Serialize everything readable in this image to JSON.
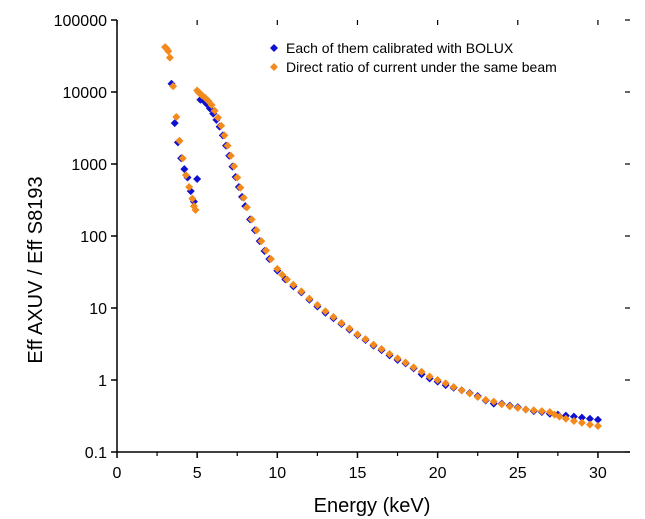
{
  "chart_data": {
    "type": "scatter",
    "title": "",
    "xlabel": "Energy (keV)",
    "ylabel": "Eff AXUV / Eff S8193",
    "xlim": [
      0,
      32
    ],
    "ylim": [
      0.1,
      100000
    ],
    "yscale": "log",
    "grid": false,
    "legend_position": "top-right",
    "x_ticks": [
      0,
      5,
      10,
      15,
      20,
      25,
      30
    ],
    "x_tick_labels": [
      "0",
      "5",
      "10",
      "15",
      "20",
      "25",
      "30"
    ],
    "y_ticks": [
      0.1,
      1,
      10,
      100,
      1000,
      10000,
      100000
    ],
    "y_tick_labels": [
      "0.1",
      "1",
      "10",
      "100",
      "1000",
      "10000",
      "100000"
    ],
    "series": [
      {
        "name": "Each of them calibrated with BOLUX",
        "color": "#1010d0",
        "marker": "diamond",
        "points": [
          [
            3.4,
            13000
          ],
          [
            3.6,
            3700
          ],
          [
            3.8,
            2000
          ],
          [
            4.0,
            1200
          ],
          [
            4.2,
            850
          ],
          [
            4.4,
            650
          ],
          [
            4.6,
            420
          ],
          [
            4.8,
            300
          ],
          [
            5.0,
            620
          ],
          [
            5.2,
            7800
          ],
          [
            5.4,
            7600
          ],
          [
            5.6,
            6800
          ],
          [
            5.8,
            5900
          ],
          [
            6.0,
            5000
          ],
          [
            6.2,
            4100
          ],
          [
            6.4,
            3300
          ],
          [
            6.6,
            2500
          ],
          [
            6.8,
            1800
          ],
          [
            7.0,
            1300
          ],
          [
            7.2,
            920
          ],
          [
            7.4,
            660
          ],
          [
            7.6,
            480
          ],
          [
            7.8,
            350
          ],
          [
            8.0,
            260
          ],
          [
            8.3,
            170
          ],
          [
            8.6,
            120
          ],
          [
            8.9,
            85
          ],
          [
            9.2,
            62
          ],
          [
            9.5,
            48
          ],
          [
            10.0,
            33
          ],
          [
            10.5,
            25
          ],
          [
            11.0,
            20
          ],
          [
            11.5,
            16.5
          ],
          [
            12.0,
            13
          ],
          [
            12.5,
            10.5
          ],
          [
            13.0,
            8.6
          ],
          [
            13.5,
            7.2
          ],
          [
            14.0,
            6.0
          ],
          [
            14.5,
            5.0
          ],
          [
            15.0,
            4.2
          ],
          [
            15.5,
            3.6
          ],
          [
            16.0,
            3.0
          ],
          [
            16.5,
            2.6
          ],
          [
            17.0,
            2.2
          ],
          [
            17.5,
            1.9
          ],
          [
            18.0,
            1.7
          ],
          [
            18.5,
            1.45
          ],
          [
            19.0,
            1.2
          ],
          [
            19.5,
            1.05
          ],
          [
            20.0,
            0.95
          ],
          [
            20.5,
            0.85
          ],
          [
            21.0,
            0.78
          ],
          [
            21.5,
            0.72
          ],
          [
            22.0,
            0.66
          ],
          [
            22.5,
            0.6
          ],
          [
            23.0,
            0.52
          ],
          [
            23.5,
            0.47
          ],
          [
            24.0,
            0.47
          ],
          [
            24.5,
            0.44
          ],
          [
            25.0,
            0.42
          ],
          [
            25.5,
            0.39
          ],
          [
            26.0,
            0.37
          ],
          [
            26.5,
            0.36
          ],
          [
            27.0,
            0.34
          ],
          [
            27.5,
            0.33
          ],
          [
            28.0,
            0.32
          ],
          [
            28.5,
            0.31
          ],
          [
            29.0,
            0.3
          ],
          [
            29.5,
            0.29
          ],
          [
            30.0,
            0.28
          ]
        ]
      },
      {
        "name": "Direct ratio of current under the same beam",
        "color": "#f28a1e",
        "marker": "diamond",
        "points": [
          [
            3.0,
            42000
          ],
          [
            3.1,
            40000
          ],
          [
            3.2,
            37000
          ],
          [
            3.3,
            30000
          ],
          [
            3.5,
            12000
          ],
          [
            3.7,
            4500
          ],
          [
            3.9,
            2100
          ],
          [
            4.1,
            1200
          ],
          [
            4.3,
            700
          ],
          [
            4.5,
            480
          ],
          [
            4.7,
            330
          ],
          [
            4.8,
            260
          ],
          [
            4.9,
            230
          ],
          [
            5.0,
            10500
          ],
          [
            5.1,
            9800
          ],
          [
            5.2,
            9400
          ],
          [
            5.3,
            9000
          ],
          [
            5.5,
            8300
          ],
          [
            5.7,
            7500
          ],
          [
            5.9,
            6600
          ],
          [
            6.1,
            5500
          ],
          [
            6.3,
            4400
          ],
          [
            6.5,
            3400
          ],
          [
            6.7,
            2500
          ],
          [
            6.9,
            1800
          ],
          [
            7.1,
            1300
          ],
          [
            7.3,
            930
          ],
          [
            7.5,
            650
          ],
          [
            7.7,
            470
          ],
          [
            7.9,
            340
          ],
          [
            8.1,
            250
          ],
          [
            8.4,
            170
          ],
          [
            8.7,
            120
          ],
          [
            9.0,
            85
          ],
          [
            9.3,
            63
          ],
          [
            9.6,
            48
          ],
          [
            10.0,
            35
          ],
          [
            10.3,
            29
          ],
          [
            10.6,
            25
          ],
          [
            11.0,
            21
          ],
          [
            11.5,
            17
          ],
          [
            12.0,
            13.5
          ],
          [
            12.5,
            11
          ],
          [
            13.0,
            9
          ],
          [
            13.5,
            7.5
          ],
          [
            14.0,
            6.2
          ],
          [
            14.5,
            5.2
          ],
          [
            15.0,
            4.3
          ],
          [
            15.5,
            3.7
          ],
          [
            16.0,
            3.1
          ],
          [
            16.5,
            2.7
          ],
          [
            17.0,
            2.3
          ],
          [
            17.5,
            2.0
          ],
          [
            18.0,
            1.75
          ],
          [
            18.5,
            1.5
          ],
          [
            19.0,
            1.3
          ],
          [
            19.5,
            1.12
          ],
          [
            20.0,
            1.0
          ],
          [
            20.5,
            0.9
          ],
          [
            21.0,
            0.8
          ],
          [
            21.5,
            0.72
          ],
          [
            22.0,
            0.65
          ],
          [
            22.5,
            0.58
          ],
          [
            23.0,
            0.53
          ],
          [
            23.5,
            0.5
          ],
          [
            24.0,
            0.46
          ],
          [
            24.5,
            0.43
          ],
          [
            25.0,
            0.41
          ],
          [
            25.5,
            0.39
          ],
          [
            26.0,
            0.38
          ],
          [
            26.5,
            0.37
          ],
          [
            27.0,
            0.36
          ],
          [
            27.3,
            0.33
          ],
          [
            27.6,
            0.31
          ],
          [
            28.0,
            0.29
          ],
          [
            28.5,
            0.27
          ],
          [
            29.0,
            0.255
          ],
          [
            29.5,
            0.24
          ],
          [
            30.0,
            0.23
          ]
        ]
      }
    ]
  }
}
